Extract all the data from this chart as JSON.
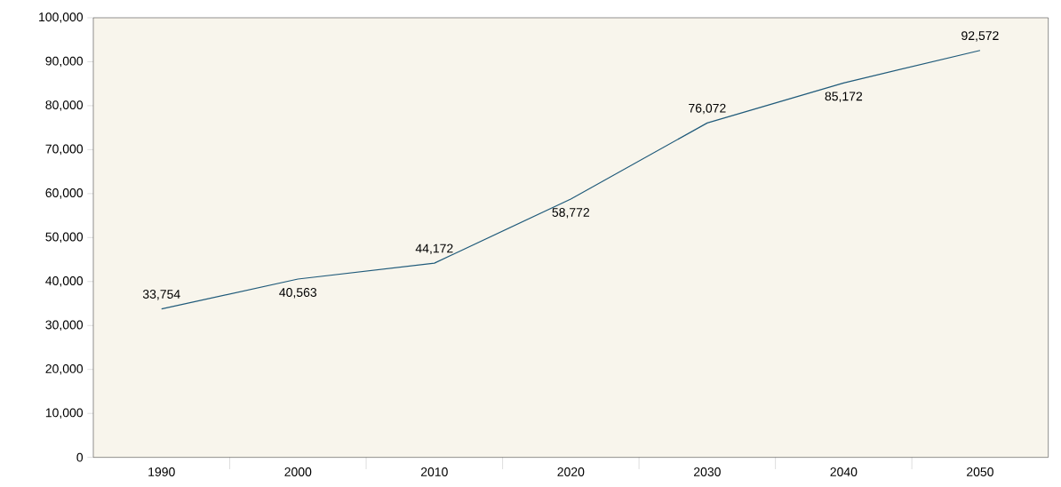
{
  "chart_data": {
    "type": "line",
    "categories": [
      "1990",
      "2000",
      "2010",
      "2020",
      "2030",
      "2040",
      "2050"
    ],
    "series": [
      {
        "color": "#1f5a7a",
        "values": [
          33754,
          40563,
          44172,
          58772,
          76072,
          85172,
          92572
        ],
        "value_labels": [
          "33,754",
          "40,563",
          "44,172",
          "58,772",
          "76,072",
          "85,172",
          "92,572"
        ]
      }
    ],
    "ylim": [
      0,
      100000
    ],
    "yticks": [
      {
        "value": 0,
        "label": "0"
      },
      {
        "value": 10000,
        "label": "10,000"
      },
      {
        "value": 20000,
        "label": "20,000"
      },
      {
        "value": 30000,
        "label": "30,000"
      },
      {
        "value": 40000,
        "label": "40,000"
      },
      {
        "value": 50000,
        "label": "50,000"
      },
      {
        "value": 60000,
        "label": "60,000"
      },
      {
        "value": 70000,
        "label": "70,000"
      },
      {
        "value": 80000,
        "label": "80,000"
      },
      {
        "value": 90000,
        "label": "90,000"
      },
      {
        "value": 100000,
        "label": "100,000"
      }
    ],
    "grid": false,
    "legend": false,
    "marker": "none",
    "line_style": "solid"
  }
}
